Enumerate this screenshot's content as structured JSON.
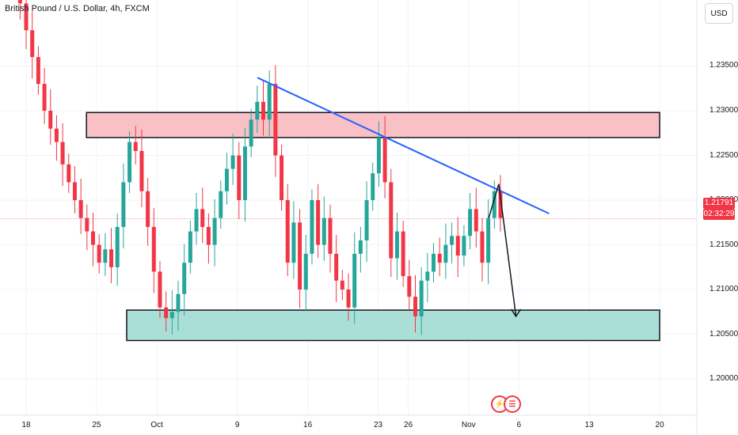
{
  "header": {
    "symbol": "British Pound / U.S. Dollar, 4h, FXCM"
  },
  "price_scale": {
    "currency": "USD"
  },
  "current_price": {
    "value": "1.21791",
    "countdown": "02:32:29"
  },
  "badges": {
    "dividend_icon": "lightning-icon",
    "flag_icon": "us-flag-icon"
  },
  "colors": {
    "up": "#26a69a",
    "down": "#f23645",
    "resistance_zone": "#f9c0c5",
    "support_zone": "#aadfd7",
    "trendline": "#2962ff"
  },
  "chart_data": {
    "type": "candlestick",
    "title": "British Pound / U.S. Dollar, 4h, FXCM",
    "ylim": [
      1.1955,
      1.2415
    ],
    "y_ticks": [
      "1.20000",
      "1.20500",
      "1.21000",
      "1.21500",
      "1.22000",
      "1.22500",
      "1.23000",
      "1.23500"
    ],
    "x_ticks": [
      "18",
      "25",
      "Oct",
      "9",
      "16",
      "23",
      "26",
      "Nov",
      "6",
      "13",
      "20"
    ],
    "x_tick_dates": [
      "2023-09-18",
      "2023-09-25",
      "2023-10-01",
      "2023-10-09",
      "2023-10-16",
      "2023-10-23",
      "2023-10-26",
      "2023-11-01",
      "2023-11-06",
      "2023-11-13",
      "2023-11-20"
    ],
    "closes": [
      1.2475,
      1.245,
      1.242,
      1.239,
      1.236,
      1.233,
      1.23,
      1.228,
      1.2265,
      1.224,
      1.222,
      1.22,
      1.218,
      1.2165,
      1.215,
      1.213,
      1.2145,
      1.2125,
      1.217,
      1.222,
      1.2265,
      1.2255,
      1.221,
      1.217,
      1.212,
      1.208,
      1.2068,
      1.2075,
      1.2095,
      1.213,
      1.2165,
      1.219,
      1.217,
      1.215,
      1.218,
      1.221,
      1.2235,
      1.225,
      1.22,
      1.226,
      1.229,
      1.231,
      1.229,
      1.233,
      1.225,
      1.22,
      1.213,
      1.2175,
      1.21,
      1.214,
      1.22,
      1.215,
      1.218,
      1.214,
      1.211,
      1.21,
      1.208,
      1.214,
      1.2155,
      1.22,
      1.223,
      1.227,
      1.222,
      1.2135,
      1.2165,
      1.2115,
      1.2092,
      1.207,
      1.211,
      1.212,
      1.214,
      1.213,
      1.215,
      1.216,
      1.2138,
      1.216,
      1.219,
      1.2165,
      1.213,
      1.218,
      1.221,
      1.218
    ],
    "resistance_zone": {
      "top": 1.2298,
      "bottom": 1.227,
      "from": "2023-09-24",
      "to": "2023-11-20"
    },
    "support_zone": {
      "top": 1.2077,
      "bottom": 1.2043,
      "from": "2023-09-28",
      "to": "2023-11-20"
    },
    "last_price_line": 1.21791,
    "trendline": {
      "from": [
        "2023-10-11",
        1.2337
      ],
      "to": [
        "2023-11-09",
        1.2185
      ]
    },
    "projection_arrow": {
      "from": [
        "2023-11-03",
        1.218
      ],
      "peak": [
        "2023-11-04",
        1.2218
      ],
      "to": [
        "2023-11-05",
        1.207
      ]
    },
    "grid": true
  }
}
